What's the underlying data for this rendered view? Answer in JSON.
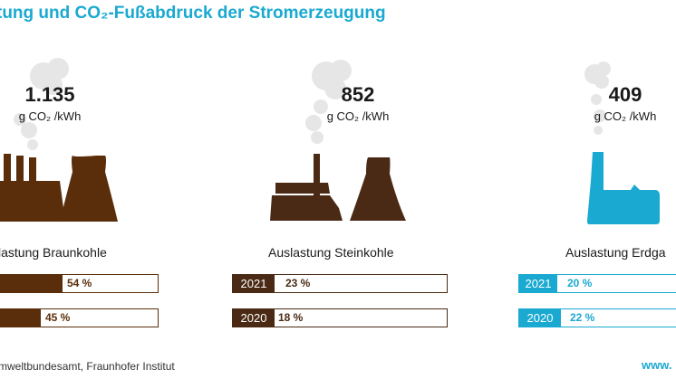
{
  "title": "tung und CO₂-Fußabdruck der Stromerzeugung",
  "source": "mweltbundesamt, Fraunhofer Institut",
  "www": "www.",
  "colors": {
    "braunkohle": "#5a2e0b",
    "steinkohle": "#4a2a14",
    "erdgas": "#1aa9d1",
    "smoke": "#e6e6e6",
    "title": "#1aa9d1"
  },
  "chart_data": {
    "type": "bar",
    "title": "tung und CO₂-Fußabdruck der Stromerzeugung",
    "groups": [
      {
        "co2_value": "1.135",
        "co2_unit": "g CO₂ /kWh",
        "label": "lastung Braunkohle",
        "bars": [
          {
            "year": "",
            "value": 54,
            "label": "54 %"
          },
          {
            "year": "",
            "value": 45,
            "label": "45 %"
          }
        ]
      },
      {
        "co2_value": "852",
        "co2_unit": "g CO₂ /kWh",
        "label": "Auslastung Steinkohle",
        "bars": [
          {
            "year": "2021",
            "value": 23,
            "label": "23 %"
          },
          {
            "year": "2020",
            "value": 18,
            "label": "18 %"
          }
        ]
      },
      {
        "co2_value": "409",
        "co2_unit": "g CO₂ /kWh",
        "label": "Auslastung Erdga",
        "bars": [
          {
            "year": "2021",
            "value": 20,
            "label": "20 %"
          },
          {
            "year": "2020",
            "value": 22,
            "label": "22 %"
          }
        ]
      }
    ]
  }
}
